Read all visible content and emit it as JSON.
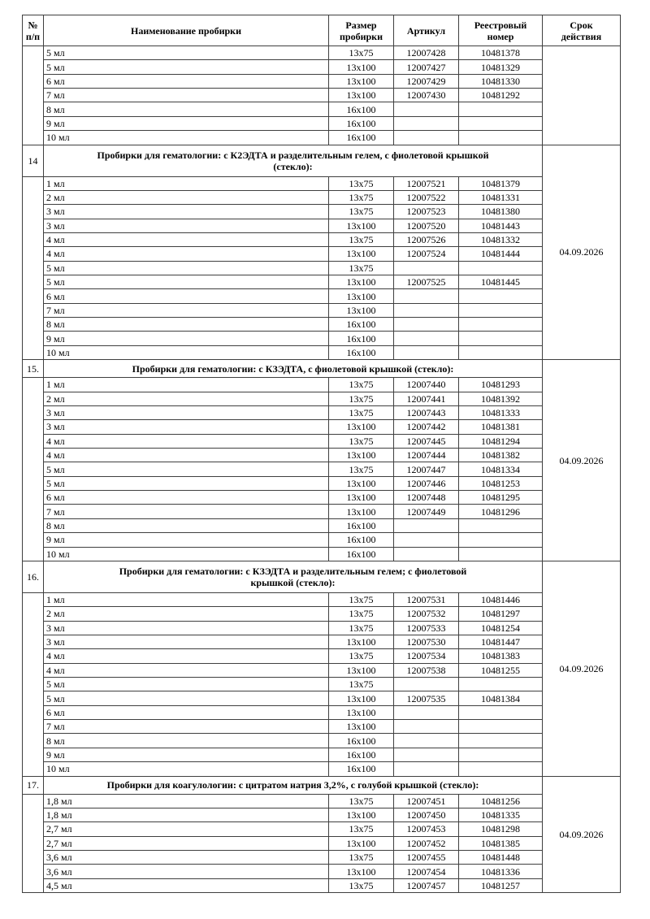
{
  "colors": {
    "background": "#ffffff",
    "text": "#000000",
    "border": "#3f3f3f"
  },
  "document": {
    "columns": [
      {
        "id": "num",
        "label": "№\nп/п"
      },
      {
        "id": "name",
        "label": "Наименование пробирки"
      },
      {
        "id": "size",
        "label": "Размер\nпробирки"
      },
      {
        "id": "article",
        "label": "Артикул"
      },
      {
        "id": "registry",
        "label": "Реестровый\nномер"
      },
      {
        "id": "validity",
        "label": "Срок\nдействия"
      }
    ],
    "sections": [
      {
        "number": "",
        "title": "",
        "validity": "",
        "rows": [
          [
            "5 мл",
            "13x75",
            "12007428",
            "10481378"
          ],
          [
            "5 мл",
            "13x100",
            "12007427",
            "10481329"
          ],
          [
            "6 мл",
            "13x100",
            "12007429",
            "10481330"
          ],
          [
            "7 мл",
            "13x100",
            "12007430",
            "10481292"
          ],
          [
            "8 мл",
            "16x100",
            "",
            ""
          ],
          [
            "9 мл",
            "16x100",
            "",
            ""
          ],
          [
            "10 мл",
            "16x100",
            "",
            ""
          ]
        ]
      },
      {
        "number": "14",
        "title": "Пробирки для гематологии: с К2ЭДТА и разделительным гелем, с фиолетовой крышкой\n(стекло):",
        "validity": "04.09.2026",
        "rows": [
          [
            "1 мл",
            "13x75",
            "12007521",
            "10481379"
          ],
          [
            "2 мл",
            "13x75",
            "12007522",
            "10481331"
          ],
          [
            "3 мл",
            "13x75",
            "12007523",
            "10481380"
          ],
          [
            "3 мл",
            "13x100",
            "12007520",
            "10481443"
          ],
          [
            "4 мл",
            "13x75",
            "12007526",
            "10481332"
          ],
          [
            "4 мл",
            "13x100",
            "12007524",
            "10481444"
          ],
          [
            "5 мл",
            "13x75",
            "",
            ""
          ],
          [
            "5 мл",
            "13x100",
            "12007525",
            "10481445"
          ],
          [
            "6 мл",
            "13x100",
            "",
            ""
          ],
          [
            "7 мл",
            "13x100",
            "",
            ""
          ],
          [
            "8 мл",
            "16x100",
            "",
            ""
          ],
          [
            "9 мл",
            "16x100",
            "",
            ""
          ],
          [
            "10 мл",
            "16x100",
            "",
            ""
          ]
        ]
      },
      {
        "number": "15.",
        "title": "Пробирки для гематологии: с КЗЭДТА, с фиолетовой крышкой (стекло):",
        "validity": "04.09.2026",
        "rows": [
          [
            "1 мл",
            "13x75",
            "12007440",
            "10481293"
          ],
          [
            "2 мл",
            "13x75",
            "12007441",
            "10481392"
          ],
          [
            "3 мл",
            "13x75",
            "12007443",
            "10481333"
          ],
          [
            "3 мл",
            "13x100",
            "12007442",
            "10481381"
          ],
          [
            "4 мл",
            "13x75",
            "12007445",
            "10481294"
          ],
          [
            "4 мл",
            "13x100",
            "12007444",
            "10481382"
          ],
          [
            "5 мл",
            "13x75",
            "12007447",
            "10481334"
          ],
          [
            "5 мл",
            "13x100",
            "12007446",
            "10481253"
          ],
          [
            "6 мл",
            "13x100",
            "12007448",
            "10481295"
          ],
          [
            "7 мл",
            "13x100",
            "12007449",
            "10481296"
          ],
          [
            "8 мл",
            "16x100",
            "",
            ""
          ],
          [
            "9 мл",
            "16x100",
            "",
            ""
          ],
          [
            "10 мл",
            "16x100",
            "",
            ""
          ]
        ]
      },
      {
        "number": "16.",
        "title": "Пробирки для гематологии: с КЗЭДТА и разделительным гелем; с фиолетовой\nкрышкой (стекло):",
        "validity": "04.09.2026",
        "rows": [
          [
            "1 мл",
            "13x75",
            "12007531",
            "10481446"
          ],
          [
            "2 мл",
            "13x75",
            "12007532",
            "10481297"
          ],
          [
            "3 мл",
            "13x75",
            "12007533",
            "10481254"
          ],
          [
            "3 мл",
            "13x100",
            "12007530",
            "10481447"
          ],
          [
            "4 мл",
            "13x75",
            "12007534",
            "10481383"
          ],
          [
            "4 мл",
            "13x100",
            "12007538",
            "10481255"
          ],
          [
            "5 мл",
            "13x75",
            "",
            ""
          ],
          [
            "5 мл",
            "13x100",
            "12007535",
            "10481384"
          ],
          [
            "6 мл",
            "13x100",
            "",
            ""
          ],
          [
            "7 мл",
            "13x100",
            "",
            ""
          ],
          [
            "8 мл",
            "16x100",
            "",
            ""
          ],
          [
            "9 мл",
            "16x100",
            "",
            ""
          ],
          [
            "10 мл",
            "16x100",
            "",
            ""
          ]
        ]
      },
      {
        "number": "17.",
        "title": "Пробирки для коагулологии: с цитратом натрия 3,2%, с голубой крышкой (стекло):",
        "validity": "04.09.2026",
        "rows": [
          [
            "1,8 мл",
            "13x75",
            "12007451",
            "10481256"
          ],
          [
            "1,8 мл",
            "13x100",
            "12007450",
            "10481335"
          ],
          [
            "2,7 мл",
            "13x75",
            "12007453",
            "10481298"
          ],
          [
            "2,7 мл",
            "13x100",
            "12007452",
            "10481385"
          ],
          [
            "3,6 мл",
            "13x75",
            "12007455",
            "10481448"
          ],
          [
            "3,6 мл",
            "13x100",
            "12007454",
            "10481336"
          ],
          [
            "4,5 мл",
            "13x75",
            "12007457",
            "10481257"
          ]
        ]
      }
    ]
  }
}
